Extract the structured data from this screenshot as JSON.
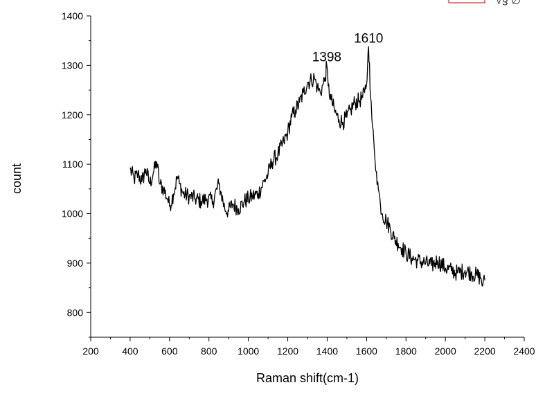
{
  "chart_data": {
    "type": "line",
    "title": "",
    "xlabel": "Raman shift(cm-1)",
    "ylabel": "count",
    "xlim": [
      200,
      2400
    ],
    "ylim": [
      750,
      1400
    ],
    "x_ticks": [
      200,
      400,
      600,
      800,
      1000,
      1200,
      1400,
      1600,
      1800,
      2000,
      2200,
      2400
    ],
    "y_ticks": [
      800,
      900,
      1000,
      1100,
      1200,
      1300,
      1400
    ],
    "grid": false,
    "legend": "none",
    "line_color": "#000000",
    "annotations": [
      {
        "text": "1398",
        "x": 1398,
        "y": 1300
      },
      {
        "text": "1610",
        "x": 1610,
        "y": 1338
      }
    ],
    "series": [
      {
        "x": [
          400,
          420,
          440,
          460,
          480,
          500,
          520,
          535,
          550,
          570,
          590,
          600,
          620,
          640,
          650,
          670,
          700,
          730,
          760,
          790,
          820,
          850,
          860,
          880,
          900,
          920,
          950,
          980,
          1000,
          1020,
          1050,
          1080,
          1100,
          1120,
          1150,
          1180,
          1200,
          1220,
          1240,
          1260,
          1280,
          1300,
          1320,
          1335,
          1350,
          1365,
          1380,
          1390,
          1398,
          1405,
          1420,
          1440,
          1460,
          1480,
          1500,
          1520,
          1540,
          1560,
          1580,
          1590,
          1600,
          1605,
          1610,
          1615,
          1620,
          1630,
          1640,
          1650,
          1660,
          1670,
          1680,
          1700,
          1720,
          1740,
          1760,
          1780,
          1800,
          1830,
          1860,
          1900,
          1930,
          1960,
          2000,
          2030,
          2060,
          2100,
          2130,
          2160,
          2180,
          2190,
          2200
        ],
        "y": [
          1090,
          1070,
          1080,
          1065,
          1090,
          1060,
          1085,
          1105,
          1060,
          1050,
          1030,
          1015,
          1040,
          1075,
          1060,
          1040,
          1035,
          1030,
          1025,
          1030,
          1025,
          1060,
          1045,
          1010,
          1005,
          1020,
          1010,
          1025,
          1030,
          1035,
          1040,
          1065,
          1080,
          1105,
          1120,
          1145,
          1165,
          1195,
          1210,
          1225,
          1245,
          1265,
          1270,
          1275,
          1255,
          1245,
          1262,
          1275,
          1300,
          1258,
          1230,
          1205,
          1190,
          1185,
          1195,
          1210,
          1225,
          1228,
          1235,
          1245,
          1262,
          1300,
          1338,
          1305,
          1235,
          1175,
          1125,
          1085,
          1050,
          1020,
          1000,
          985,
          970,
          950,
          940,
          930,
          920,
          910,
          905,
          900,
          895,
          905,
          890,
          885,
          880,
          885,
          880,
          875,
          870,
          855,
          865
        ]
      }
    ]
  },
  "corner_glyphs": "√§ ∅"
}
